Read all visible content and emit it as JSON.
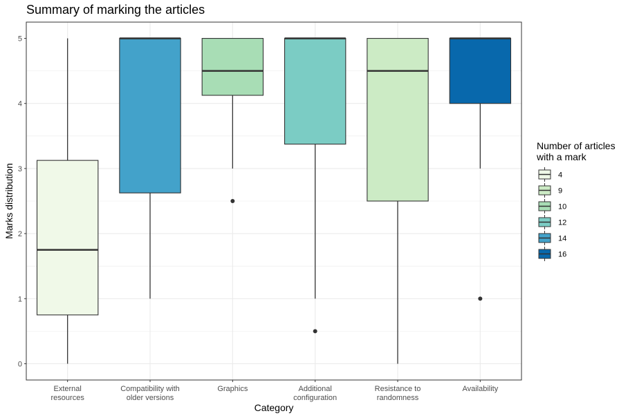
{
  "chart_data": {
    "type": "box",
    "title": "Summary of marking the articles",
    "xlabel": "Category",
    "ylabel": "Marks distribution",
    "ylim": [
      -0.25,
      5.25
    ],
    "yticks": [
      "0",
      "1",
      "2",
      "3",
      "4",
      "5"
    ],
    "grid": true,
    "legend_position": "right",
    "legend": {
      "title": [
        "Number of articles",
        "with a mark"
      ],
      "entries": [
        {
          "label": "4",
          "color": "#f0f9e8"
        },
        {
          "label": "9",
          "color": "#ccebc5"
        },
        {
          "label": "10",
          "color": "#a8ddb5"
        },
        {
          "label": "12",
          "color": "#7bccc4"
        },
        {
          "label": "14",
          "color": "#43a2ca"
        },
        {
          "label": "16",
          "color": "#0868ac"
        }
      ]
    },
    "categories": [
      {
        "label": [
          "External",
          "resources"
        ],
        "n": "4",
        "min": 0,
        "q1": 0.75,
        "median": 1.75,
        "q3": 3.125,
        "max": 5,
        "outliers": []
      },
      {
        "label": [
          "Compatibility with",
          "older versions"
        ],
        "n": "14",
        "min": 1,
        "q1": 2.625,
        "median": 5,
        "q3": 5,
        "max": 5,
        "outliers": []
      },
      {
        "label": [
          "Graphics"
        ],
        "n": "10",
        "min": 3,
        "q1": 4.125,
        "median": 4.5,
        "q3": 5,
        "max": 5,
        "outliers": [
          2.5
        ]
      },
      {
        "label": [
          "Additional",
          "configuration"
        ],
        "n": "12",
        "min": 1,
        "q1": 3.375,
        "median": 5,
        "q3": 5,
        "max": 5,
        "outliers": [
          0.5
        ]
      },
      {
        "label": [
          "Resistance to",
          "randomness"
        ],
        "n": "9",
        "min": 0,
        "q1": 2.5,
        "median": 4.5,
        "q3": 5,
        "max": 5,
        "outliers": []
      },
      {
        "label": [
          "Availability"
        ],
        "n": "16",
        "min": 3,
        "q1": 4,
        "median": 5,
        "q3": 5,
        "max": 5,
        "outliers": [
          1
        ]
      }
    ]
  }
}
